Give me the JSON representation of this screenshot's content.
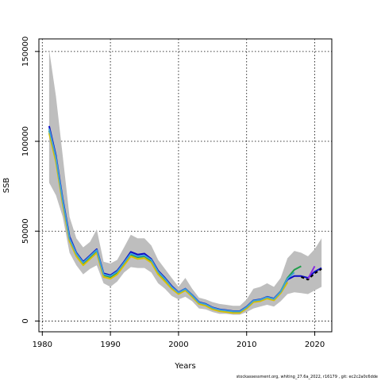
{
  "chart_data": {
    "type": "line",
    "title": "",
    "xlabel": "Years",
    "ylabel": "SSB",
    "xlim": [
      1979.5,
      2022.5
    ],
    "ylim": [
      -6000,
      157000
    ],
    "xticks": [
      1980,
      1990,
      2000,
      2010,
      2020
    ],
    "yticks": [
      0,
      50000,
      100000,
      150000
    ],
    "ytick_labels": [
      "0",
      "50000",
      "100000",
      "150000"
    ],
    "grid": true,
    "legend": "none",
    "band": {
      "name": "",
      "color": "#bebebe",
      "x": [
        1981,
        1982,
        1983,
        1984,
        1985,
        1986,
        1987,
        1988,
        1989,
        1990,
        1991,
        1992,
        1993,
        1994,
        1995,
        1996,
        1997,
        1998,
        1999,
        2000,
        2001,
        2002,
        2003,
        2004,
        2005,
        2006,
        2007,
        2008,
        2009,
        2010,
        2011,
        2012,
        2013,
        2014,
        2015,
        2016,
        2017,
        2018,
        2019,
        2020,
        2021
      ],
      "upper": [
        151000,
        125000,
        92000,
        58000,
        46000,
        41000,
        44000,
        51000,
        33000,
        32000,
        34000,
        41000,
        48000,
        46000,
        46000,
        42000,
        34000,
        29000,
        24000,
        19000,
        24000,
        18000,
        13000,
        12000,
        10500,
        9500,
        9000,
        8500,
        8500,
        12000,
        18000,
        19000,
        21000,
        19000,
        24000,
        35000,
        39000,
        38000,
        36000,
        40000,
        46000
      ],
      "lower": [
        77000,
        70000,
        58000,
        38000,
        31000,
        26000,
        29000,
        31000,
        21000,
        19000,
        22000,
        27000,
        30000,
        29500,
        29500,
        27000,
        21000,
        18000,
        14000,
        12000,
        13500,
        11000,
        7000,
        6500,
        5000,
        4000,
        4000,
        3500,
        3500,
        5000,
        7000,
        8000,
        9000,
        8000,
        11000,
        15000,
        16000,
        15500,
        15000,
        17000,
        19000
      ]
    },
    "series": [
      {
        "name": "",
        "color": "#0b0bc8",
        "x": [
          1981,
          1982,
          1983,
          1984,
          1985,
          1986,
          1987,
          1988,
          1989,
          1990,
          1991,
          1992,
          1993,
          1994,
          1995,
          1996,
          1997,
          1998,
          1999,
          2000,
          2001,
          2002,
          2003,
          2004,
          2005,
          2006,
          2007,
          2008,
          2009,
          2010,
          2011,
          2012,
          2013,
          2014,
          2015,
          2016,
          2017,
          2018,
          2019,
          2020,
          2021
        ],
        "y": [
          108500,
          92000,
          68000,
          47000,
          38000,
          33000,
          36500,
          40000,
          26500,
          25500,
          28000,
          33000,
          38500,
          37000,
          37500,
          34500,
          28000,
          24000,
          19500,
          16000,
          18000,
          14500,
          10500,
          9500,
          7500,
          6500,
          6000,
          5500,
          5500,
          8000,
          11500,
          12000,
          13500,
          12500,
          16500,
          23000,
          25000,
          25000,
          24000,
          27500,
          29500
        ]
      },
      {
        "name": "",
        "color": "#1f9e4a",
        "x": [
          1981,
          1982,
          1983,
          1984,
          1985,
          1986,
          1987,
          1988,
          1989,
          1990,
          1991,
          1992,
          1993,
          1994,
          1995,
          1996,
          1997,
          1998,
          1999,
          2000,
          2001,
          2002,
          2003,
          2004,
          2005,
          2006,
          2007,
          2008,
          2009,
          2010,
          2011,
          2012,
          2013,
          2014,
          2015,
          2016,
          2017,
          2018
        ],
        "y": [
          106000,
          90000,
          66000,
          45500,
          37000,
          32000,
          35500,
          39000,
          25500,
          24500,
          27000,
          32000,
          37000,
          35500,
          36000,
          33500,
          27000,
          23000,
          18500,
          15500,
          17500,
          14000,
          10000,
          9000,
          7000,
          6000,
          5500,
          5000,
          5000,
          7500,
          11000,
          11500,
          13000,
          12000,
          16500,
          24000,
          28500,
          30500
        ]
      },
      {
        "name": "",
        "color": "#d8c000",
        "x": [
          1981,
          1982,
          1983,
          1984,
          1985,
          1986,
          1987,
          1988,
          1989,
          1990,
          1991,
          1992,
          1993,
          1994,
          1995,
          1996,
          1997,
          1998,
          1999,
          2000,
          2001,
          2002,
          2003,
          2004,
          2005,
          2006,
          2007,
          2008,
          2009,
          2010,
          2011,
          2012,
          2013,
          2014,
          2015,
          2016
        ],
        "y": [
          104500,
          88500,
          65000,
          44500,
          36000,
          31000,
          34500,
          38000,
          24500,
          23500,
          26000,
          31000,
          36000,
          34500,
          35000,
          32500,
          26000,
          22000,
          18000,
          15000,
          17000,
          13500,
          9500,
          8500,
          6500,
          5500,
          5000,
          4500,
          4500,
          7000,
          10500,
          11000,
          12500,
          11500,
          15500,
          21500
        ]
      },
      {
        "name": "",
        "color": "#3ea0d8",
        "x": [
          1981,
          1982,
          1983,
          1984,
          1985,
          1986,
          1987,
          1988,
          1989,
          1990,
          1991,
          1992,
          1993,
          1994,
          1995,
          1996,
          1997,
          1998,
          1999,
          2000,
          2001,
          2002,
          2003,
          2004,
          2005,
          2006,
          2007,
          2008,
          2009,
          2010,
          2011,
          2012,
          2013,
          2014,
          2015,
          2016,
          2017
        ],
        "y": [
          107000,
          91000,
          67000,
          46000,
          37500,
          32500,
          36000,
          39500,
          26000,
          25000,
          27500,
          32500,
          37500,
          36000,
          36500,
          34000,
          27500,
          23500,
          19000,
          15800,
          17800,
          14300,
          10300,
          9300,
          7300,
          6300,
          5800,
          5300,
          5300,
          7800,
          11300,
          11800,
          13300,
          12300,
          16300,
          23500,
          27000
        ]
      },
      {
        "name": "",
        "color": "#000000",
        "dashed": true,
        "x": [
          2018,
          2019,
          2020,
          2021
        ],
        "y": [
          24500,
          23000,
          26500,
          29000
        ]
      },
      {
        "name": "",
        "color": "#8a2be2",
        "x": [
          2019,
          2020
        ],
        "y": [
          23500,
          30500
        ]
      }
    ]
  },
  "footer_text": "stockassessment.org, whiting_27.6a_2022, r16179 , git: ec2c2a0c6dde"
}
